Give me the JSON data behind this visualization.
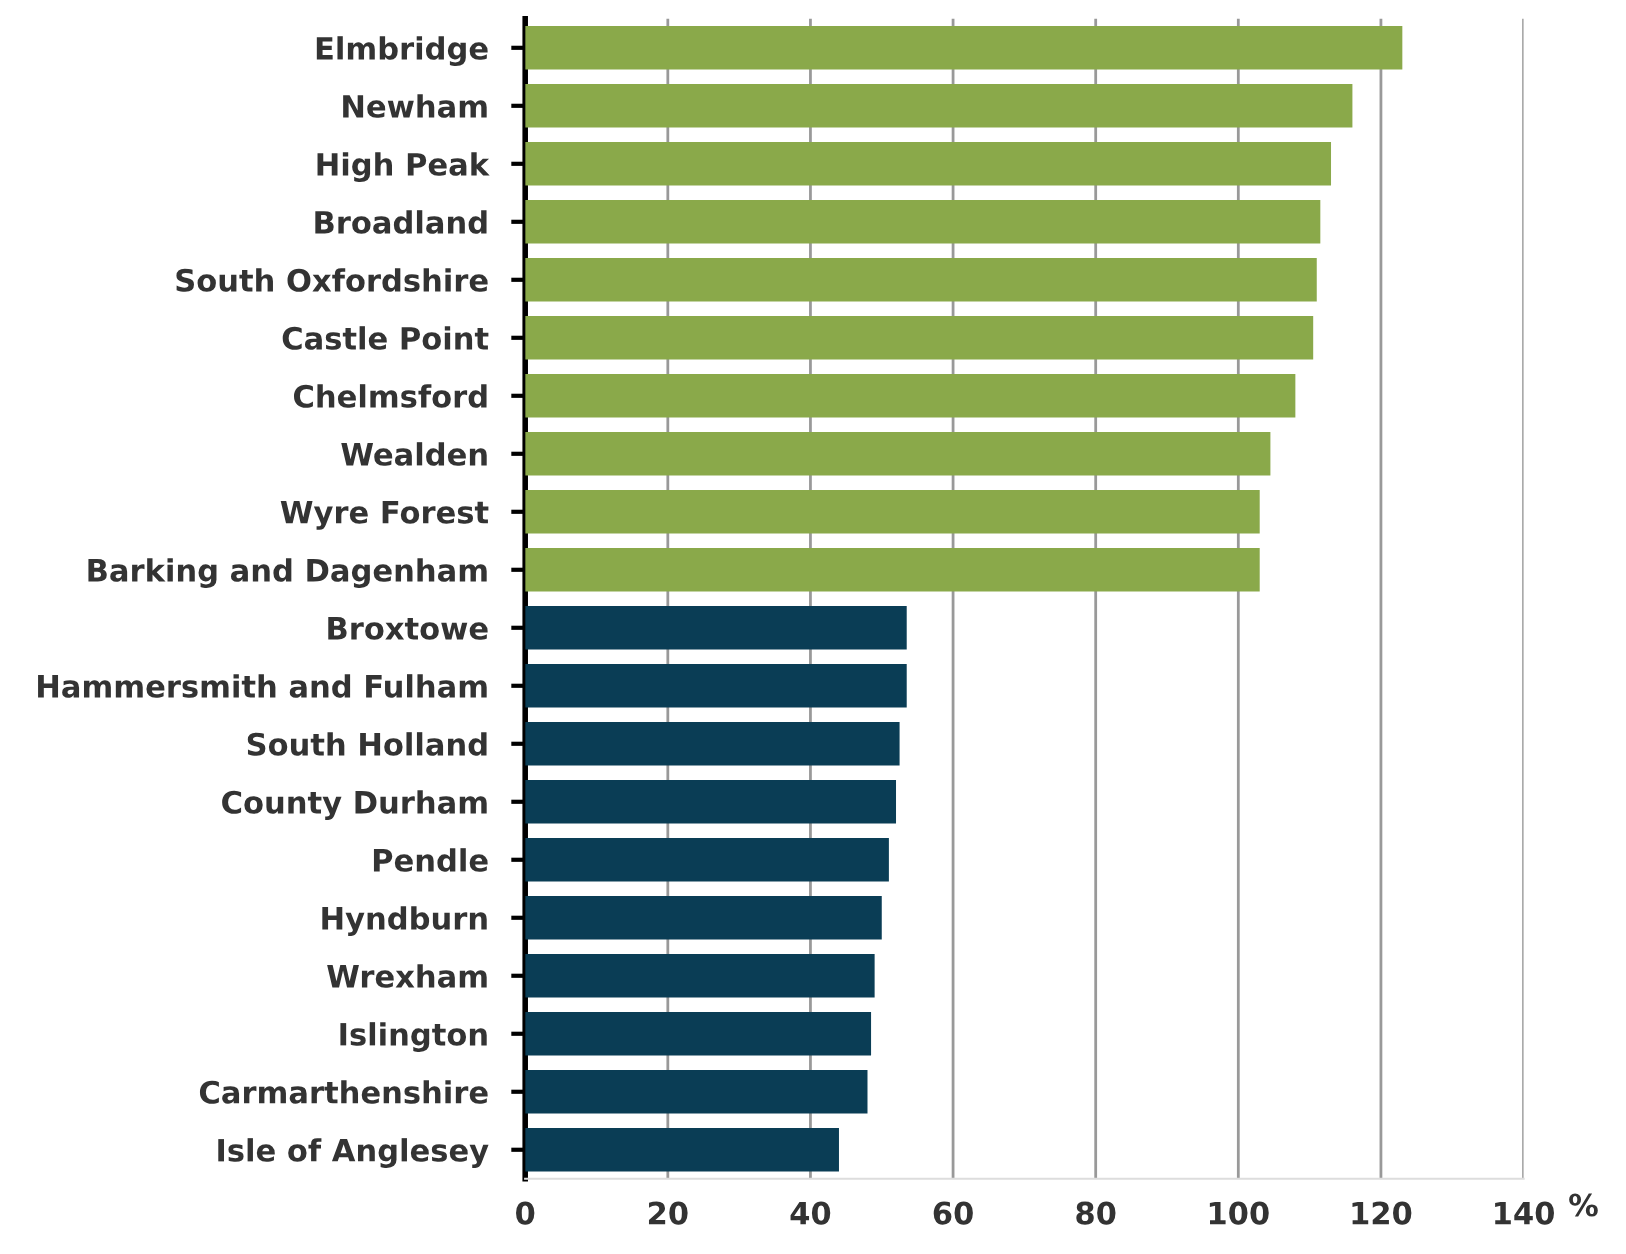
{
  "chart_data": {
    "type": "bar",
    "orientation": "horizontal",
    "xlabel": "%",
    "categories": [
      "Elmbridge",
      "Newham",
      "High Peak",
      "Broadland",
      "South Oxfordshire",
      "Castle Point",
      "Chelmsford",
      "Wealden",
      "Wyre Forest",
      "Barking and Dagenham",
      "Broxtowe",
      "Hammersmith and Fulham",
      "South Holland",
      "County Durham",
      "Pendle",
      "Hyndburn",
      "Wrexham",
      "Islington",
      "Carmarthenshire",
      "Isle of Anglesey"
    ],
    "values": [
      123,
      116,
      113,
      111.5,
      111,
      110.5,
      108,
      104.5,
      103,
      103,
      53.5,
      53.5,
      52.5,
      52,
      51,
      50,
      49,
      48.5,
      48,
      44
    ],
    "colors": [
      "#8aa94a",
      "#8aa94a",
      "#8aa94a",
      "#8aa94a",
      "#8aa94a",
      "#8aa94a",
      "#8aa94a",
      "#8aa94a",
      "#8aa94a",
      "#8aa94a",
      "#0a3d55",
      "#0a3d55",
      "#0a3d55",
      "#0a3d55",
      "#0a3d55",
      "#0a3d55",
      "#0a3d55",
      "#0a3d55",
      "#0a3d55",
      "#0a3d55"
    ],
    "xlim": [
      0,
      140
    ],
    "xticks": [
      0,
      20,
      40,
      60,
      80,
      100,
      120,
      140
    ],
    "grid": "x",
    "legend": false
  }
}
